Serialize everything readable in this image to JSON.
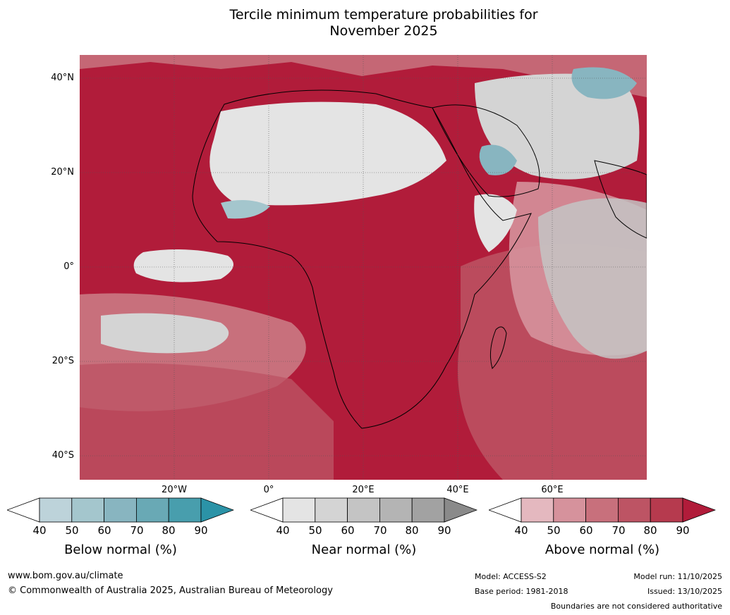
{
  "title": {
    "line1": "Tercile minimum temperature probabilities for",
    "line2": "November 2025"
  },
  "map": {
    "lat_labels": [
      "40°N",
      "20°N",
      "0°",
      "20°S",
      "40°S"
    ],
    "lon_labels": [
      "20°W",
      "0°",
      "20°E",
      "40°E",
      "60°E"
    ]
  },
  "legends": [
    {
      "caption": "Below normal (%)",
      "ticks": [
        "40",
        "50",
        "60",
        "70",
        "80",
        "90"
      ],
      "colors": [
        "#ffffff",
        "#bdd3da",
        "#a4c6cd",
        "#88b5c0",
        "#69a9b5",
        "#489ead",
        "#2b93a7"
      ]
    },
    {
      "caption": "Near normal (%)",
      "ticks": [
        "40",
        "50",
        "60",
        "70",
        "80",
        "90"
      ],
      "colors": [
        "#ffffff",
        "#e4e4e4",
        "#d4d4d4",
        "#c4c4c4",
        "#b4b4b4",
        "#a2a2a2",
        "#8a8a8a"
      ]
    },
    {
      "caption": "Above normal (%)",
      "ticks": [
        "40",
        "50",
        "60",
        "70",
        "80",
        "90"
      ],
      "colors": [
        "#ffffff",
        "#e4b8bf",
        "#d6929c",
        "#c8707c",
        "#bd5464",
        "#b63a4e",
        "#b11c3a"
      ]
    }
  ],
  "footer": {
    "website": "www.bom.gov.au/climate",
    "copyright": "© Commonwealth of Australia 2025, Australian Bureau of Meteorology",
    "model": "Model: ACCESS-S2",
    "base_period": "Base period: 1981-2018",
    "model_run": "Model run: 11/10/2025",
    "issued": "Issued: 13/10/2025",
    "disclaimer": "Boundaries are not considered authoritative"
  }
}
